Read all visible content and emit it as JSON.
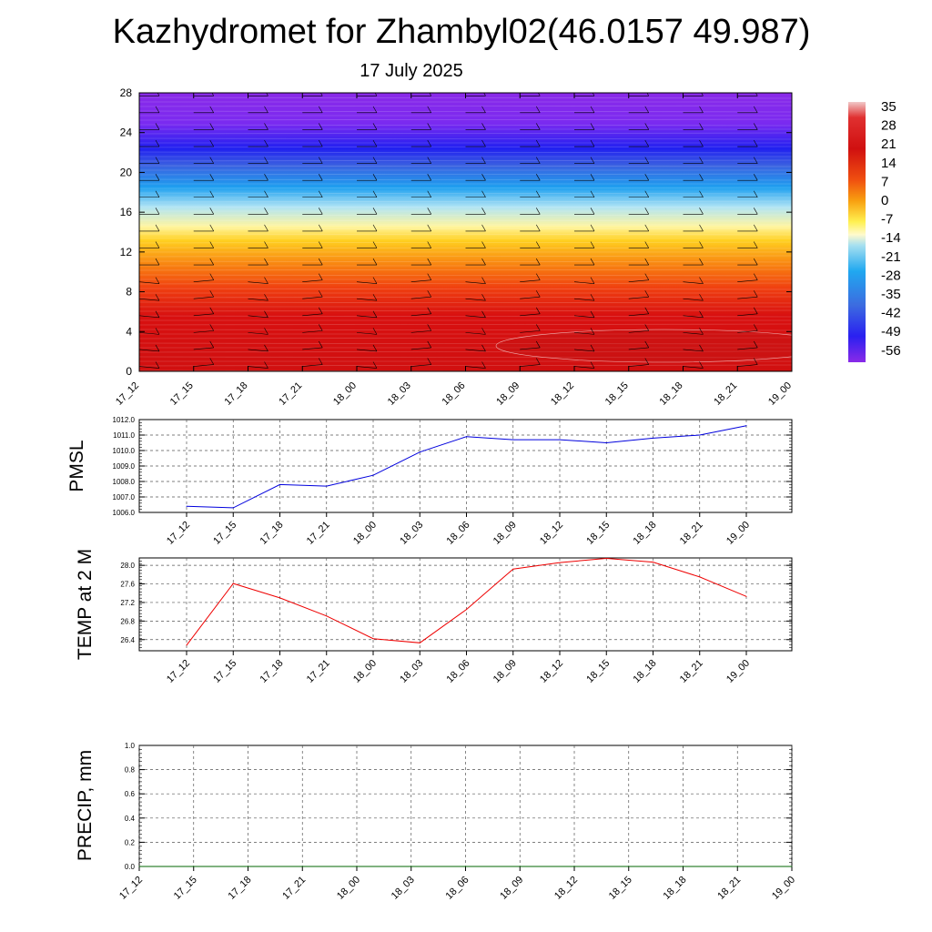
{
  "title": "Kazhydromet for Zhambyl02(46.0157 49.987)",
  "subtitle": "17 July 2025",
  "colors": {
    "pmsl_line": "#0000dd",
    "temp_line": "#ee0000",
    "precip_line": "#006400"
  },
  "chart_data": [
    {
      "type": "heatmap",
      "yticks": [
        "0",
        "4",
        "8",
        "12",
        "16",
        "20",
        "24",
        "28"
      ],
      "ylim": [
        0,
        28
      ],
      "x_ticks": [
        "17_12",
        "17_15",
        "17_18",
        "17_21",
        "18_00",
        "18_03",
        "18_06",
        "18_09",
        "18_12",
        "18_15",
        "18_18",
        "18_21",
        "19_00"
      ],
      "colorbar_labels": [
        "35",
        "28",
        "21",
        "14",
        "7",
        "0",
        "-7",
        "-14",
        "-21",
        "-28",
        "-35",
        "-42",
        "-49",
        "-56"
      ],
      "colorbar_range": [
        -56,
        35
      ],
      "legend_position": "right",
      "overlay": "wind barbs"
    },
    {
      "type": "line",
      "ylabel": "PMSL",
      "x_ticks": [
        "17_12",
        "17_15",
        "17_18",
        "17_21",
        "18_00",
        "18_03",
        "18_06",
        "18_09",
        "18_12",
        "18_15",
        "18_18",
        "18_21",
        "19_00"
      ],
      "values": [
        1006.4,
        1006.3,
        1007.8,
        1007.7,
        1008.4,
        1009.9,
        1010.9,
        1010.7,
        1010.7,
        1010.5,
        1010.8,
        1011.0,
        1011.6
      ],
      "yticks": [
        "1006.0",
        "1007.0",
        "1008.0",
        "1009.0",
        "1010.0",
        "1011.0",
        "1012.0"
      ],
      "ylim": [
        1006.0,
        1012.0
      ],
      "grid": true
    },
    {
      "type": "line",
      "ylabel": "TEMP at 2 M",
      "x_ticks": [
        "17_12",
        "17_15",
        "17_18",
        "17_21",
        "18_00",
        "18_03",
        "18_06",
        "18_09",
        "18_12",
        "18_15",
        "18_18",
        "18_21",
        "19_00"
      ],
      "values": [
        26.28,
        27.61,
        27.3,
        26.91,
        26.42,
        26.33,
        27.05,
        27.92,
        28.06,
        28.15,
        28.07,
        27.75,
        27.33
      ],
      "yticks": [
        "26.4",
        "26.8",
        "27.2",
        "27.6",
        "28.0"
      ],
      "ylim": [
        26.16,
        28.16
      ],
      "grid": true
    },
    {
      "type": "line",
      "ylabel": "PRECIP, mm",
      "x_ticks": [
        "17_12",
        "17_15",
        "17_18",
        "17_21",
        "18_00",
        "18_03",
        "18_06",
        "18_09",
        "18_12",
        "18_15",
        "18_18",
        "18_21",
        "19_00"
      ],
      "values": [
        0,
        0,
        0,
        0,
        0,
        0,
        0,
        0,
        0,
        0,
        0,
        0,
        0
      ],
      "yticks": [
        "0.0",
        "0.2",
        "0.4",
        "0.6",
        "0.8",
        "1.0"
      ],
      "ylim": [
        0,
        1
      ],
      "grid": true
    }
  ]
}
